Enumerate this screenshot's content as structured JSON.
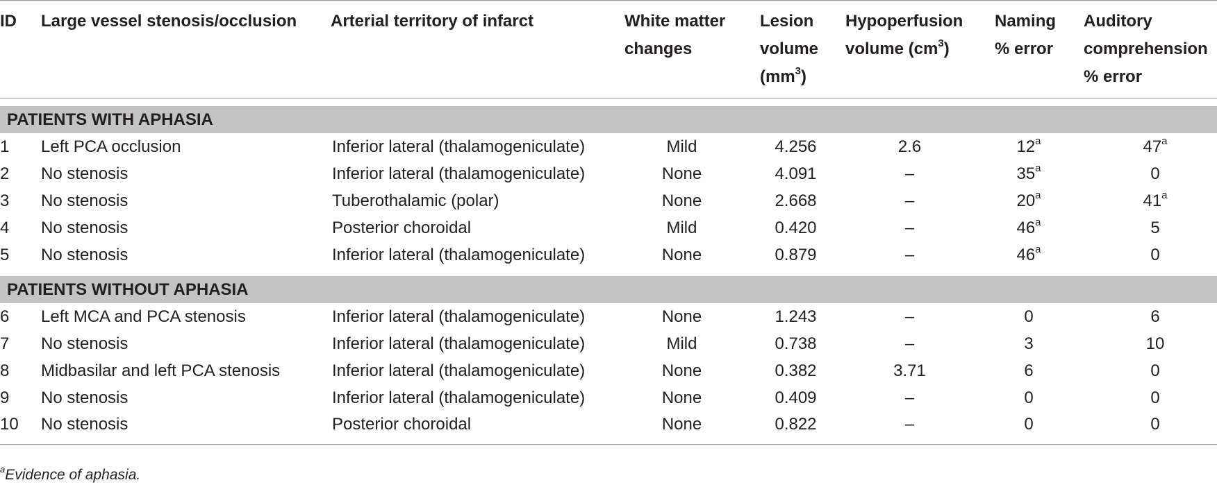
{
  "columns": [
    {
      "lines": [
        "ID"
      ]
    },
    {
      "lines": [
        "Large vessel stenosis/occlusion"
      ]
    },
    {
      "lines": [
        "Arterial territory of infarct"
      ]
    },
    {
      "lines": [
        "White matter",
        "changes"
      ]
    },
    {
      "lines": [
        "Lesion",
        "volume",
        "(mm"
      ],
      "sup": "3",
      "suffix": ")"
    },
    {
      "lines": [
        "Hypoperfusion",
        "volume (cm"
      ],
      "sup": "3",
      "suffix": ")"
    },
    {
      "lines": [
        "Naming",
        "% error"
      ]
    },
    {
      "lines": [
        "Auditory",
        "comprehension",
        "% error"
      ]
    }
  ],
  "sections": [
    {
      "title": "PATIENTS WITH APHASIA",
      "rows": [
        {
          "id": "1",
          "vessel": "Left PCA occlusion",
          "territory": "Inferior lateral (thalamogeniculate)",
          "wm": "Mild",
          "lesion": "4.256",
          "hypo": "2.6",
          "naming": "12",
          "naming_sup": "a",
          "aud": "47",
          "aud_sup": "a"
        },
        {
          "id": "2",
          "vessel": "No stenosis",
          "territory": "Inferior lateral (thalamogeniculate)",
          "wm": "None",
          "lesion": "4.091",
          "hypo": "–",
          "naming": "35",
          "naming_sup": "a",
          "aud": "0",
          "aud_sup": ""
        },
        {
          "id": "3",
          "vessel": "No stenosis",
          "territory": "Tuberothalamic (polar)",
          "wm": "None",
          "lesion": "2.668",
          "hypo": "–",
          "naming": "20",
          "naming_sup": "a",
          "aud": "41",
          "aud_sup": "a"
        },
        {
          "id": "4",
          "vessel": "No stenosis",
          "territory": "Posterior choroidal",
          "wm": "Mild",
          "lesion": "0.420",
          "hypo": "–",
          "naming": "46",
          "naming_sup": "a",
          "aud": "5",
          "aud_sup": ""
        },
        {
          "id": "5",
          "vessel": "No stenosis",
          "territory": "Inferior lateral (thalamogeniculate)",
          "wm": "None",
          "lesion": "0.879",
          "hypo": "–",
          "naming": "46",
          "naming_sup": "a",
          "aud": "0",
          "aud_sup": ""
        }
      ]
    },
    {
      "title": "PATIENTS WITHOUT APHASIA",
      "rows": [
        {
          "id": "6",
          "vessel": "Left MCA and PCA stenosis",
          "territory": "Inferior lateral (thalamogeniculate)",
          "wm": "None",
          "lesion": "1.243",
          "hypo": "–",
          "naming": "0",
          "naming_sup": "",
          "aud": "6",
          "aud_sup": ""
        },
        {
          "id": "7",
          "vessel": "No stenosis",
          "territory": "Inferior lateral (thalamogeniculate)",
          "wm": "Mild",
          "lesion": "0.738",
          "hypo": "–",
          "naming": "3",
          "naming_sup": "",
          "aud": "10",
          "aud_sup": ""
        },
        {
          "id": "8",
          "vessel": "Midbasilar and left PCA stenosis",
          "territory": "Inferior lateral (thalamogeniculate)",
          "wm": "None",
          "lesion": "0.382",
          "hypo": "3.71",
          "naming": "6",
          "naming_sup": "",
          "aud": "0",
          "aud_sup": ""
        },
        {
          "id": "9",
          "vessel": "No stenosis",
          "territory": "Inferior lateral (thalamogeniculate)",
          "wm": "None",
          "lesion": "0.409",
          "hypo": "–",
          "naming": "0",
          "naming_sup": "",
          "aud": "0",
          "aud_sup": ""
        },
        {
          "id": "10",
          "vessel": "No stenosis",
          "territory": "Posterior choroidal",
          "wm": "None",
          "lesion": "0.822",
          "hypo": "–",
          "naming": "0",
          "naming_sup": "",
          "aud": "0",
          "aud_sup": ""
        }
      ]
    }
  ],
  "footnote": {
    "marker": "a",
    "text": "Evidence of aphasia."
  }
}
